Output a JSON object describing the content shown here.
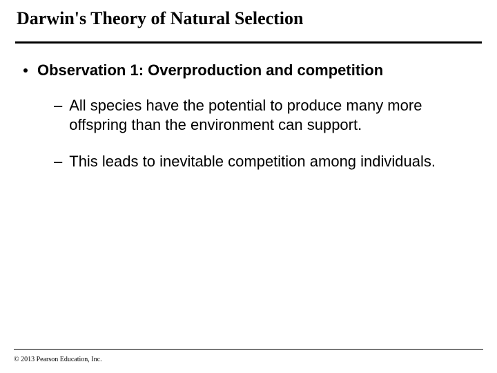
{
  "title": "Darwin's Theory of Natural Selection",
  "main_bullet": "Observation 1: Overproduction and competition",
  "sub_bullets": [
    "All species have the potential to produce many more offspring than the environment can support.",
    "This leads to inevitable competition among individuals."
  ],
  "copyright": "© 2013 Pearson Education, Inc."
}
